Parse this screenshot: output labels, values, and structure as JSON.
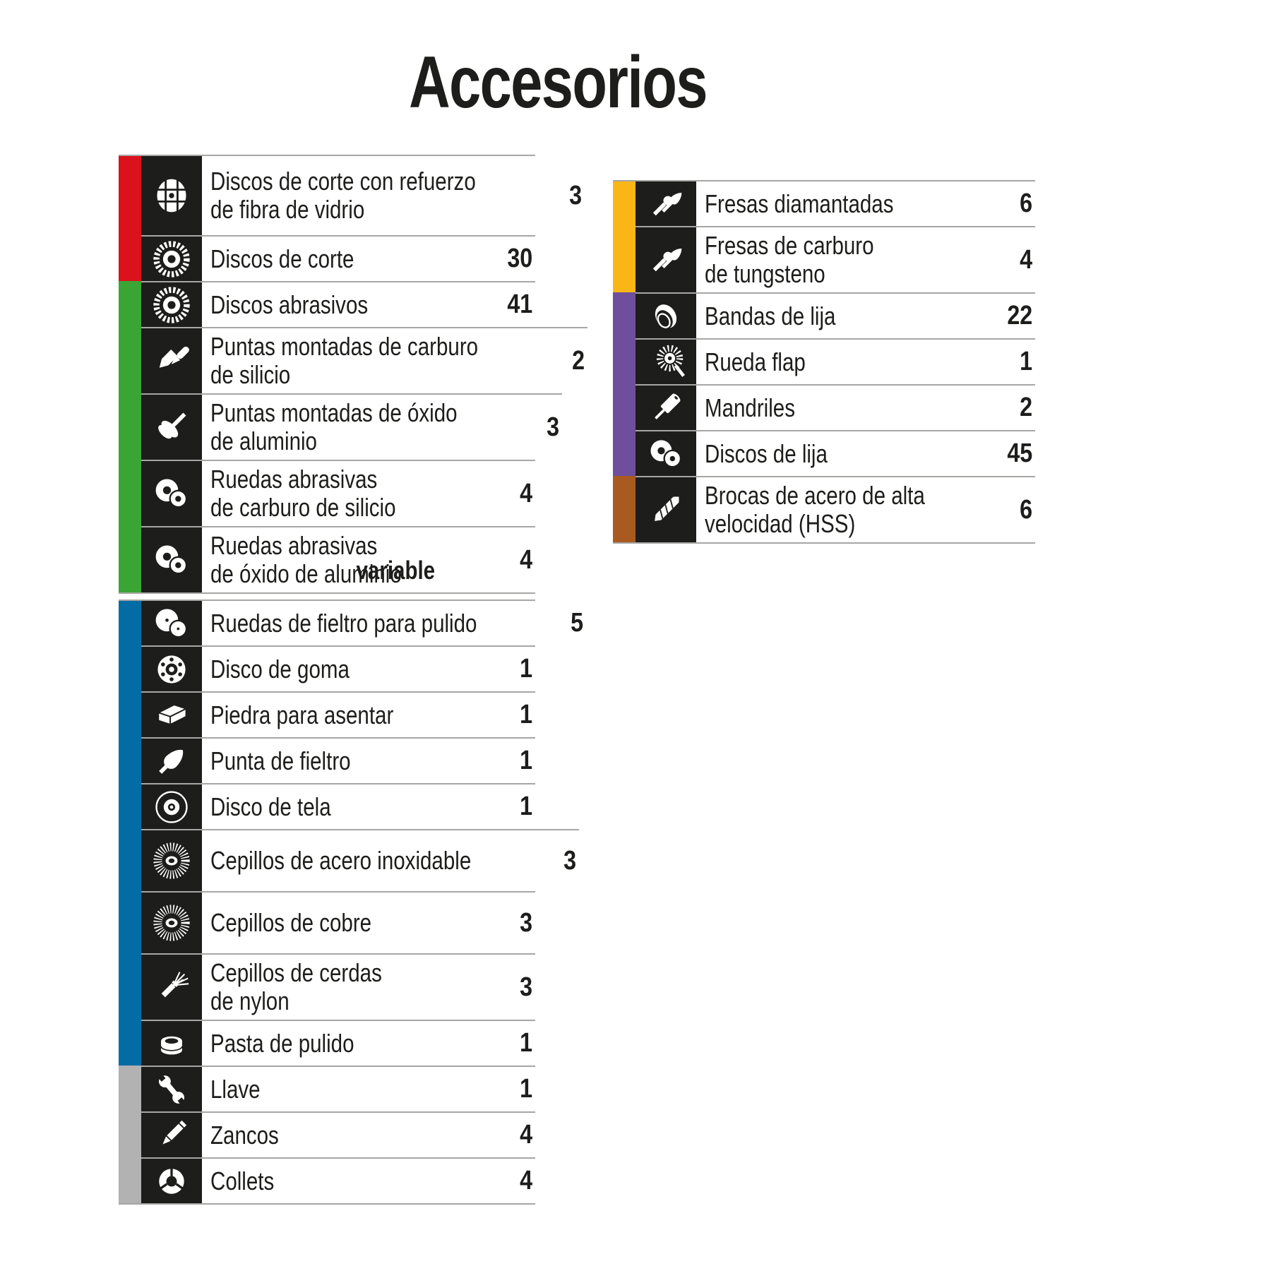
{
  "title": "Accesorios",
  "colors": {
    "red": "#d9121c",
    "green": "#3aa535",
    "blue": "#046ca5",
    "gray": "#b2b2b2",
    "yellow": "#fbb615",
    "purple": "#6f4e9c",
    "brown": "#a85a20",
    "icon_box": "#1d1d1b",
    "separator": "#a6a6a5",
    "text": "#1d1d1b"
  },
  "tables": [
    {
      "id": "left-top",
      "items": [
        {
          "category": "red",
          "icon": "fiberglass-disc-icon",
          "label": "Discos de corte con refuerzo\nde fibra de vidrio",
          "count": "3"
        },
        {
          "category": "red",
          "icon": "cut-disc-icon",
          "label": "Discos de corte",
          "count": "30"
        },
        {
          "category": "green",
          "icon": "cut-disc-icon",
          "label": "Discos abrasivos",
          "count": "41"
        },
        {
          "category": "green",
          "icon": "burr-points-icon",
          "label": "Puntas montadas de carburo\nde silicio",
          "count": "2"
        },
        {
          "category": "green",
          "icon": "mallet-point-icon",
          "label": "Puntas montadas de óxido\nde aluminio",
          "count": "3"
        },
        {
          "category": "green",
          "icon": "two-wheels-icon",
          "label": "Ruedas abrasivas\nde carburo de silicio",
          "count": "4"
        },
        {
          "category": "green",
          "icon": "two-wheels-icon",
          "label": "Ruedas abrasivas\nde óxido de aluminio",
          "count": "4",
          "note": "variable"
        }
      ]
    },
    {
      "id": "left-bottom",
      "items": [
        {
          "category": "blue",
          "icon": "felt-wheels-icon",
          "label": "Ruedas de fieltro para pulido",
          "count": "5"
        },
        {
          "category": "blue",
          "icon": "rubber-disc-icon",
          "label": "Disco de goma",
          "count": "1"
        },
        {
          "category": "blue",
          "icon": "stone-block-icon",
          "label": "Piedra para asentar",
          "count": "1"
        },
        {
          "category": "blue",
          "icon": "felt-tip-icon",
          "label": "Punta de fieltro",
          "count": "1"
        },
        {
          "category": "blue",
          "icon": "cloth-disc-icon",
          "label": "Disco de tela",
          "count": "1"
        },
        {
          "category": "blue",
          "icon": "wire-brush-icon",
          "label": "Cepillos de acero inoxidable",
          "count": "3"
        },
        {
          "category": "blue",
          "icon": "wire-brush-icon",
          "label": "Cepillos de cobre",
          "count": "3"
        },
        {
          "category": "blue",
          "icon": "nylon-brush-icon",
          "label": "Cepillos de cerdas\nde nylon",
          "count": "3"
        },
        {
          "category": "blue",
          "icon": "paste-tin-icon",
          "label": "Pasta de pulido",
          "count": "1"
        },
        {
          "category": "gray",
          "icon": "wrench-icon",
          "label": "Llave",
          "count": "1"
        },
        {
          "category": "gray",
          "icon": "shank-icon",
          "label": "Zancos",
          "count": "4"
        },
        {
          "category": "gray",
          "icon": "collet-icon",
          "label": "Collets",
          "count": "4"
        }
      ]
    },
    {
      "id": "right",
      "items": [
        {
          "category": "yellow",
          "icon": "burr-bits-icon",
          "label": "Fresas diamantadas",
          "count": "6"
        },
        {
          "category": "yellow",
          "icon": "burr-bits-icon",
          "label": "Fresas de carburo\nde tungsteno",
          "count": "4"
        },
        {
          "category": "purple",
          "icon": "sanding-band-icon",
          "label": "Bandas de lija",
          "count": "22"
        },
        {
          "category": "purple",
          "icon": "flap-wheel-icon",
          "label": "Rueda flap",
          "count": "1"
        },
        {
          "category": "purple",
          "icon": "mandrel-icon",
          "label": "Mandriles",
          "count": "2"
        },
        {
          "category": "purple",
          "icon": "sanding-discs-icon",
          "label": "Discos de lija",
          "count": "45"
        },
        {
          "category": "brown",
          "icon": "drill-bit-icon",
          "label": "Brocas de acero de alta\nvelocidad (HSS)",
          "count": "6"
        }
      ]
    }
  ]
}
